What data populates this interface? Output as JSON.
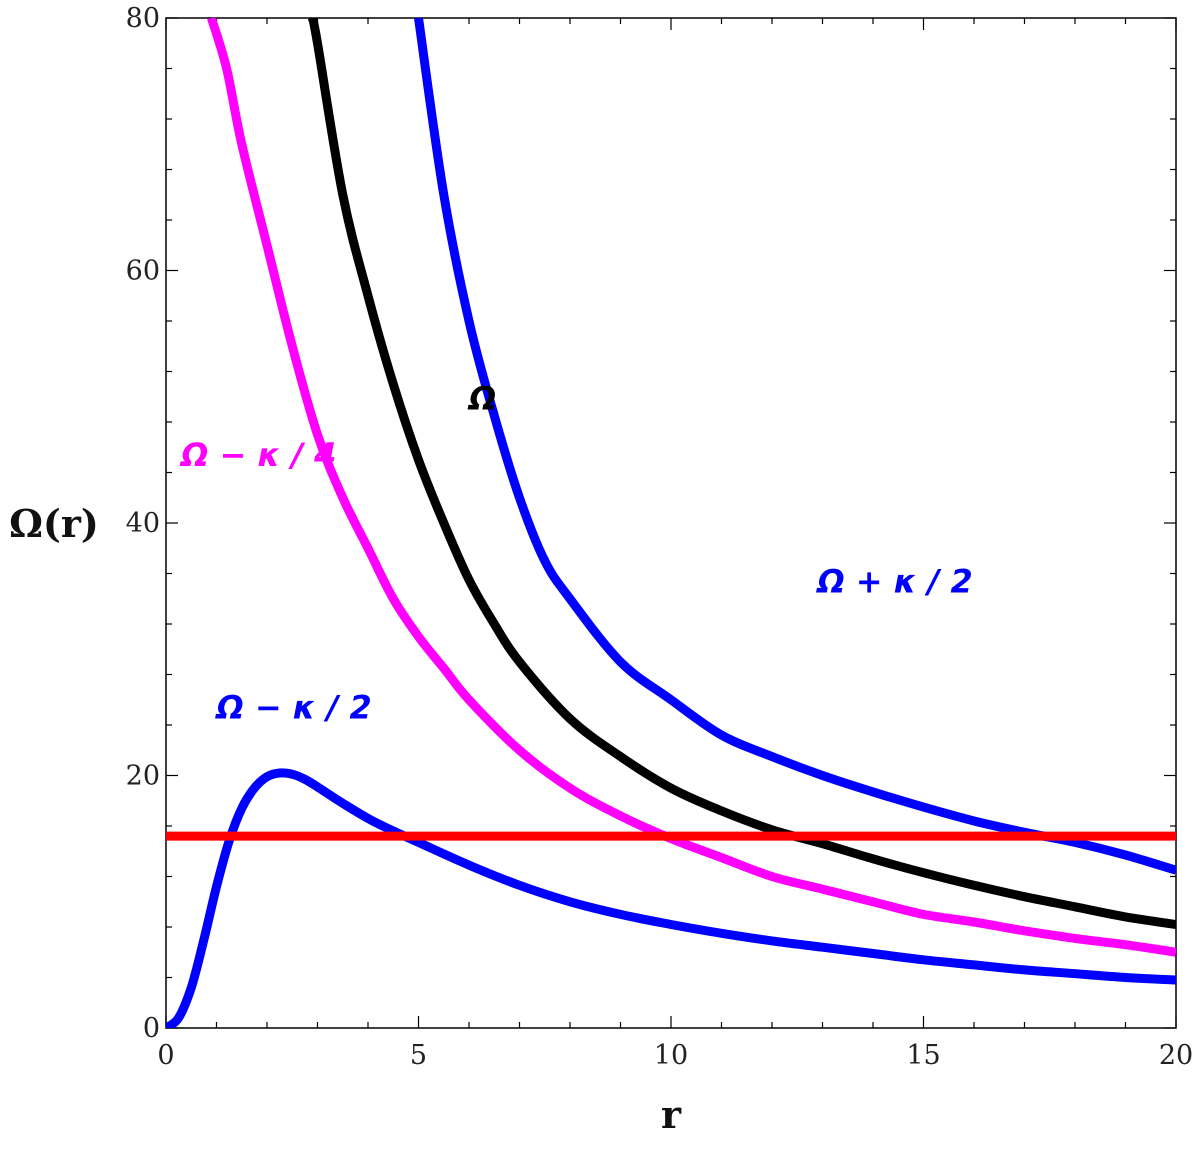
{
  "chart_data": {
    "type": "line",
    "title": "",
    "xlabel": "r",
    "ylabel": "Ω(r)",
    "xlim": [
      0,
      20
    ],
    "ylim": [
      0,
      80
    ],
    "x_ticks": [
      0,
      5,
      10,
      15,
      20
    ],
    "y_ticks": [
      0,
      20,
      40,
      60,
      80
    ],
    "grid": false,
    "legend": "none",
    "series": [
      {
        "key": "omega_plus_half_kappa",
        "name": "Ω + κ / 2",
        "color": "#0000ff",
        "x": [
          5.0,
          5.5,
          6.0,
          6.5,
          7.0,
          7.5,
          8.0,
          9.0,
          10.0,
          11.0,
          12.0,
          13.0,
          14.0,
          15.0,
          16.0,
          17.0,
          18.0,
          19.0,
          20.0
        ],
        "y": [
          80.0,
          66.0,
          56.0,
          48.5,
          42.0,
          37.0,
          34.0,
          29.0,
          26.0,
          23.2,
          21.5,
          20.0,
          18.7,
          17.5,
          16.4,
          15.5,
          14.7,
          13.7,
          12.5
        ]
      },
      {
        "key": "omega",
        "name": "Ω",
        "color": "#000000",
        "x": [
          2.9,
          3.0,
          3.5,
          4.0,
          4.5,
          5.0,
          5.5,
          6.0,
          6.5,
          7.0,
          8.0,
          9.0,
          10.0,
          11.0,
          12.0,
          13.0,
          14.0,
          15.0,
          16.0,
          17.0,
          18.0,
          19.0,
          20.0
        ],
        "y": [
          80.0,
          78.0,
          66.0,
          58.0,
          51.0,
          45.0,
          40.0,
          35.5,
          32.0,
          29.0,
          24.5,
          21.5,
          19.0,
          17.2,
          15.7,
          14.6,
          13.4,
          12.3,
          11.3,
          10.4,
          9.6,
          8.8,
          8.2
        ]
      },
      {
        "key": "omega_minus_quarter_kappa",
        "name": "Ω − κ / 4",
        "color": "#ff00ff",
        "x": [
          0.9,
          1.2,
          1.5,
          2.0,
          2.5,
          3.0,
          3.5,
          4.0,
          4.5,
          5.0,
          5.5,
          6.0,
          7.0,
          8.0,
          9.0,
          10.0,
          11.0,
          12.0,
          13.0,
          14.0,
          15.0,
          16.0,
          17.0,
          18.0,
          19.0,
          20.0
        ],
        "y": [
          80.0,
          76.0,
          70.0,
          62.0,
          54.0,
          47.0,
          42.0,
          38.0,
          34.0,
          31.0,
          28.5,
          26.0,
          22.0,
          19.0,
          16.8,
          15.0,
          13.5,
          12.0,
          11.0,
          10.0,
          9.0,
          8.4,
          7.7,
          7.1,
          6.6,
          6.0
        ]
      },
      {
        "key": "omega_minus_half_kappa",
        "name": "Ω − κ / 2",
        "color": "#0000ff",
        "x": [
          0.0,
          0.25,
          0.5,
          0.75,
          1.0,
          1.25,
          1.5,
          1.75,
          2.0,
          2.25,
          2.5,
          2.75,
          3.0,
          3.5,
          4.0,
          4.5,
          5.0,
          6.0,
          7.0,
          8.0,
          9.0,
          10.0,
          11.0,
          12.0,
          13.0,
          14.0,
          15.0,
          16.0,
          17.0,
          18.0,
          19.0,
          20.0
        ],
        "y": [
          0.0,
          0.8,
          3.2,
          7.0,
          11.2,
          14.8,
          17.4,
          19.0,
          19.9,
          20.2,
          20.1,
          19.7,
          19.1,
          17.8,
          16.6,
          15.6,
          14.7,
          12.9,
          11.3,
          10.0,
          9.0,
          8.2,
          7.5,
          6.9,
          6.4,
          5.9,
          5.4,
          5.0,
          4.6,
          4.3,
          4.0,
          3.8
        ]
      },
      {
        "key": "horizontal_line",
        "name": "",
        "color": "#ff0000",
        "x": [
          0.0,
          20.0
        ],
        "y": [
          15.2,
          15.2
        ]
      }
    ],
    "annotations": [
      {
        "series_key": "omega",
        "text": "Ω",
        "x": 6.0,
        "y": 49.0
      },
      {
        "series_key": "omega_minus_quarter_kappa",
        "text": "Ω − κ / 4",
        "x": 0.3,
        "y": 44.5
      },
      {
        "series_key": "omega_plus_half_kappa",
        "text": "Ω + κ / 2",
        "x": 12.9,
        "y": 34.5
      },
      {
        "series_key": "omega_minus_half_kappa",
        "text": "Ω − κ / 2",
        "x": 1.0,
        "y": 24.5
      }
    ]
  }
}
